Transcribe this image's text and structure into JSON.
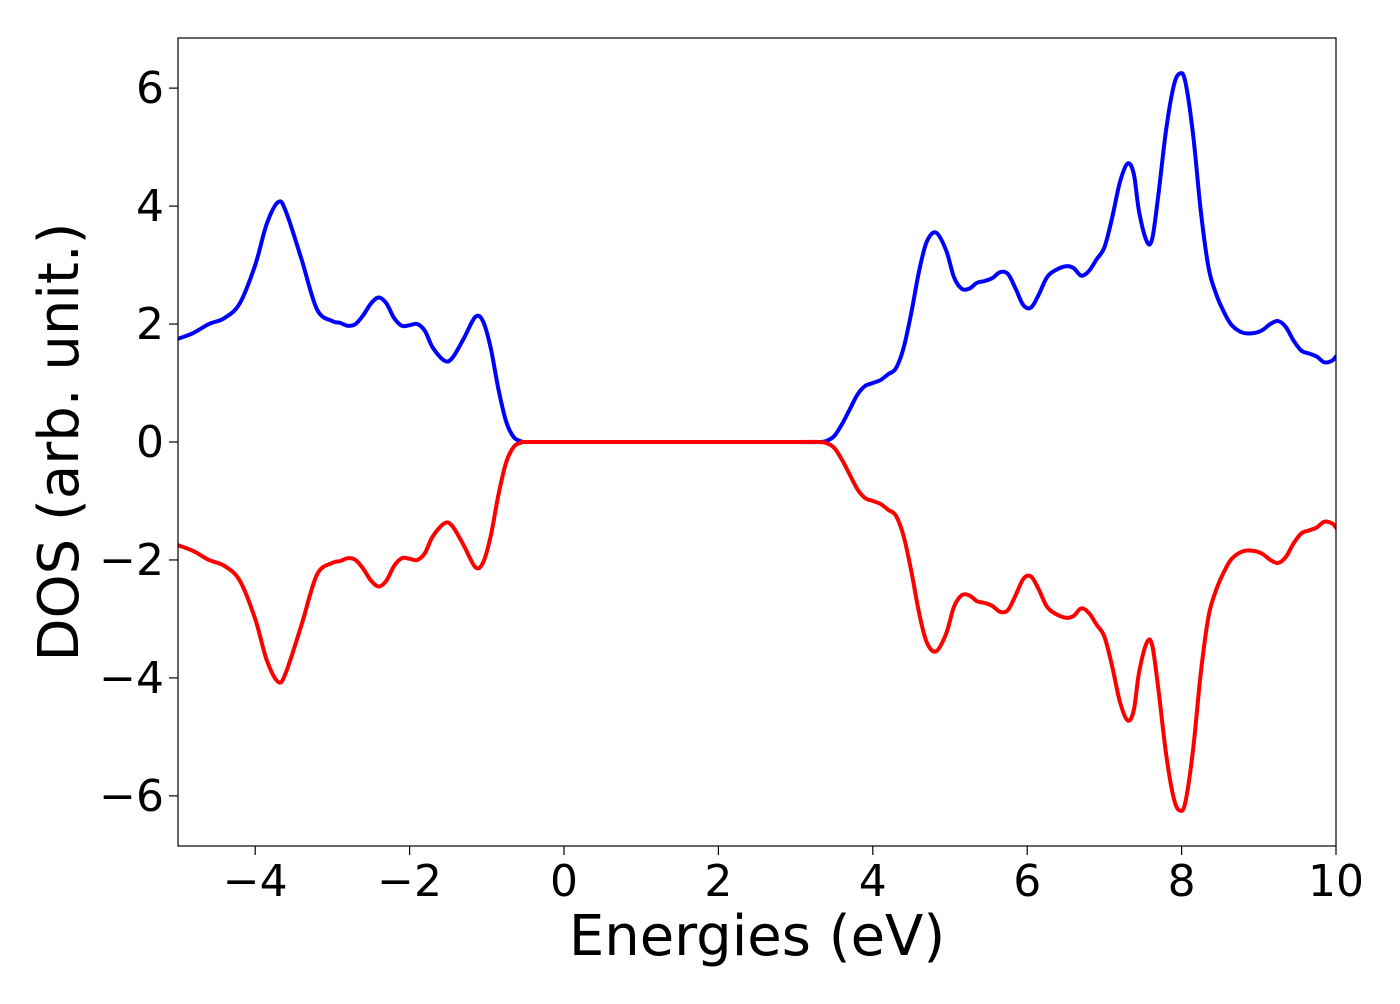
{
  "chart_data": {
    "type": "line",
    "xlabel": "Energies (eV)",
    "ylabel": "DOS (arb. unit.)",
    "xlim": [
      -5,
      10
    ],
    "ylim": [
      -6.85,
      6.85
    ],
    "xticks": [
      -4,
      -2,
      0,
      2,
      4,
      6,
      8,
      10
    ],
    "yticks": [
      -6,
      -4,
      -2,
      0,
      2,
      4,
      6
    ],
    "xtick_labels": [
      "−4",
      "−2",
      "0",
      "2",
      "4",
      "6",
      "8",
      "10"
    ],
    "ytick_labels": [
      "−6",
      "−4",
      "−2",
      "0",
      "2",
      "4",
      "6"
    ],
    "grid": false,
    "legend": "none",
    "series": [
      {
        "color": "#0000ff",
        "points": [
          [
            -5.0,
            1.75
          ],
          [
            -4.8,
            1.85
          ],
          [
            -4.6,
            2.0
          ],
          [
            -4.4,
            2.1
          ],
          [
            -4.2,
            2.35
          ],
          [
            -4.0,
            3.0
          ],
          [
            -3.85,
            3.7
          ],
          [
            -3.7,
            4.07
          ],
          [
            -3.6,
            3.9
          ],
          [
            -3.4,
            3.1
          ],
          [
            -3.2,
            2.25
          ],
          [
            -3.0,
            2.05
          ],
          [
            -2.9,
            2.02
          ],
          [
            -2.8,
            1.97
          ],
          [
            -2.7,
            2.0
          ],
          [
            -2.6,
            2.15
          ],
          [
            -2.5,
            2.35
          ],
          [
            -2.4,
            2.45
          ],
          [
            -2.3,
            2.35
          ],
          [
            -2.2,
            2.1
          ],
          [
            -2.1,
            1.97
          ],
          [
            -2.0,
            1.98
          ],
          [
            -1.9,
            2.0
          ],
          [
            -1.8,
            1.88
          ],
          [
            -1.7,
            1.6
          ],
          [
            -1.55,
            1.38
          ],
          [
            -1.45,
            1.42
          ],
          [
            -1.3,
            1.75
          ],
          [
            -1.15,
            2.12
          ],
          [
            -1.05,
            2.05
          ],
          [
            -0.95,
            1.6
          ],
          [
            -0.85,
            0.9
          ],
          [
            -0.75,
            0.35
          ],
          [
            -0.65,
            0.08
          ],
          [
            -0.55,
            0.01
          ],
          [
            -0.5,
            0.0
          ],
          [
            0.0,
            0.0
          ],
          [
            1.0,
            0.0
          ],
          [
            2.0,
            0.0
          ],
          [
            3.0,
            0.0
          ],
          [
            3.3,
            0.0
          ],
          [
            3.4,
            0.02
          ],
          [
            3.5,
            0.1
          ],
          [
            3.6,
            0.3
          ],
          [
            3.7,
            0.55
          ],
          [
            3.8,
            0.8
          ],
          [
            3.9,
            0.95
          ],
          [
            4.0,
            1.0
          ],
          [
            4.1,
            1.05
          ],
          [
            4.2,
            1.15
          ],
          [
            4.3,
            1.25
          ],
          [
            4.4,
            1.6
          ],
          [
            4.5,
            2.2
          ],
          [
            4.6,
            2.9
          ],
          [
            4.7,
            3.4
          ],
          [
            4.82,
            3.55
          ],
          [
            4.95,
            3.25
          ],
          [
            5.05,
            2.8
          ],
          [
            5.15,
            2.6
          ],
          [
            5.25,
            2.6
          ],
          [
            5.35,
            2.7
          ],
          [
            5.45,
            2.73
          ],
          [
            5.55,
            2.78
          ],
          [
            5.65,
            2.88
          ],
          [
            5.75,
            2.85
          ],
          [
            5.85,
            2.6
          ],
          [
            5.95,
            2.32
          ],
          [
            6.05,
            2.28
          ],
          [
            6.15,
            2.5
          ],
          [
            6.25,
            2.78
          ],
          [
            6.35,
            2.9
          ],
          [
            6.5,
            2.98
          ],
          [
            6.6,
            2.95
          ],
          [
            6.7,
            2.82
          ],
          [
            6.8,
            2.9
          ],
          [
            6.9,
            3.1
          ],
          [
            7.0,
            3.3
          ],
          [
            7.1,
            3.8
          ],
          [
            7.2,
            4.4
          ],
          [
            7.3,
            4.72
          ],
          [
            7.38,
            4.55
          ],
          [
            7.45,
            3.9
          ],
          [
            7.55,
            3.4
          ],
          [
            7.62,
            3.45
          ],
          [
            7.7,
            4.2
          ],
          [
            7.8,
            5.3
          ],
          [
            7.9,
            6.05
          ],
          [
            7.98,
            6.25
          ],
          [
            8.05,
            6.1
          ],
          [
            8.15,
            5.2
          ],
          [
            8.25,
            3.9
          ],
          [
            8.35,
            2.95
          ],
          [
            8.45,
            2.5
          ],
          [
            8.55,
            2.2
          ],
          [
            8.65,
            1.98
          ],
          [
            8.8,
            1.85
          ],
          [
            8.95,
            1.85
          ],
          [
            9.05,
            1.9
          ],
          [
            9.15,
            2.0
          ],
          [
            9.25,
            2.05
          ],
          [
            9.35,
            1.95
          ],
          [
            9.45,
            1.72
          ],
          [
            9.55,
            1.55
          ],
          [
            9.65,
            1.5
          ],
          [
            9.75,
            1.45
          ],
          [
            9.85,
            1.35
          ],
          [
            9.95,
            1.38
          ],
          [
            10.0,
            1.45
          ]
        ]
      },
      {
        "color": "#ff0000",
        "points": [
          [
            -5.0,
            -1.75
          ],
          [
            -4.8,
            -1.85
          ],
          [
            -4.6,
            -2.0
          ],
          [
            -4.4,
            -2.1
          ],
          [
            -4.2,
            -2.35
          ],
          [
            -4.0,
            -3.0
          ],
          [
            -3.85,
            -3.7
          ],
          [
            -3.7,
            -4.07
          ],
          [
            -3.6,
            -3.9
          ],
          [
            -3.4,
            -3.1
          ],
          [
            -3.2,
            -2.25
          ],
          [
            -3.0,
            -2.05
          ],
          [
            -2.9,
            -2.02
          ],
          [
            -2.8,
            -1.97
          ],
          [
            -2.7,
            -2.0
          ],
          [
            -2.6,
            -2.15
          ],
          [
            -2.5,
            -2.35
          ],
          [
            -2.4,
            -2.45
          ],
          [
            -2.3,
            -2.35
          ],
          [
            -2.2,
            -2.1
          ],
          [
            -2.1,
            -1.97
          ],
          [
            -2.0,
            -1.98
          ],
          [
            -1.9,
            -2.0
          ],
          [
            -1.8,
            -1.88
          ],
          [
            -1.7,
            -1.6
          ],
          [
            -1.55,
            -1.38
          ],
          [
            -1.45,
            -1.42
          ],
          [
            -1.3,
            -1.75
          ],
          [
            -1.15,
            -2.12
          ],
          [
            -1.05,
            -2.05
          ],
          [
            -0.95,
            -1.6
          ],
          [
            -0.85,
            -0.9
          ],
          [
            -0.75,
            -0.35
          ],
          [
            -0.65,
            -0.08
          ],
          [
            -0.55,
            -0.01
          ],
          [
            -0.5,
            0.0
          ],
          [
            0.0,
            0.0
          ],
          [
            1.0,
            0.0
          ],
          [
            2.0,
            0.0
          ],
          [
            3.0,
            0.0
          ],
          [
            3.3,
            0.0
          ],
          [
            3.4,
            -0.02
          ],
          [
            3.5,
            -0.1
          ],
          [
            3.6,
            -0.3
          ],
          [
            3.7,
            -0.55
          ],
          [
            3.8,
            -0.8
          ],
          [
            3.9,
            -0.95
          ],
          [
            4.0,
            -1.0
          ],
          [
            4.1,
            -1.05
          ],
          [
            4.2,
            -1.15
          ],
          [
            4.3,
            -1.25
          ],
          [
            4.4,
            -1.6
          ],
          [
            4.5,
            -2.2
          ],
          [
            4.6,
            -2.9
          ],
          [
            4.7,
            -3.4
          ],
          [
            4.82,
            -3.55
          ],
          [
            4.95,
            -3.25
          ],
          [
            5.05,
            -2.8
          ],
          [
            5.15,
            -2.6
          ],
          [
            5.25,
            -2.6
          ],
          [
            5.35,
            -2.7
          ],
          [
            5.45,
            -2.73
          ],
          [
            5.55,
            -2.78
          ],
          [
            5.65,
            -2.88
          ],
          [
            5.75,
            -2.85
          ],
          [
            5.85,
            -2.6
          ],
          [
            5.95,
            -2.32
          ],
          [
            6.05,
            -2.28
          ],
          [
            6.15,
            -2.5
          ],
          [
            6.25,
            -2.78
          ],
          [
            6.35,
            -2.9
          ],
          [
            6.5,
            -2.98
          ],
          [
            6.6,
            -2.95
          ],
          [
            6.7,
            -2.82
          ],
          [
            6.8,
            -2.9
          ],
          [
            6.9,
            -3.1
          ],
          [
            7.0,
            -3.3
          ],
          [
            7.1,
            -3.8
          ],
          [
            7.2,
            -4.4
          ],
          [
            7.3,
            -4.72
          ],
          [
            7.38,
            -4.55
          ],
          [
            7.45,
            -3.9
          ],
          [
            7.55,
            -3.4
          ],
          [
            7.62,
            -3.45
          ],
          [
            7.7,
            -4.2
          ],
          [
            7.8,
            -5.3
          ],
          [
            7.9,
            -6.05
          ],
          [
            7.98,
            -6.25
          ],
          [
            8.05,
            -6.1
          ],
          [
            8.15,
            -5.2
          ],
          [
            8.25,
            -3.9
          ],
          [
            8.35,
            -2.95
          ],
          [
            8.45,
            -2.5
          ],
          [
            8.55,
            -2.2
          ],
          [
            8.65,
            -1.98
          ],
          [
            8.8,
            -1.85
          ],
          [
            8.95,
            -1.85
          ],
          [
            9.05,
            -1.9
          ],
          [
            9.15,
            -2.0
          ],
          [
            9.25,
            -2.05
          ],
          [
            9.35,
            -1.95
          ],
          [
            9.45,
            -1.72
          ],
          [
            9.55,
            -1.55
          ],
          [
            9.65,
            -1.5
          ],
          [
            9.75,
            -1.45
          ],
          [
            9.85,
            -1.35
          ],
          [
            9.95,
            -1.38
          ],
          [
            10.0,
            -1.45
          ]
        ]
      }
    ]
  }
}
